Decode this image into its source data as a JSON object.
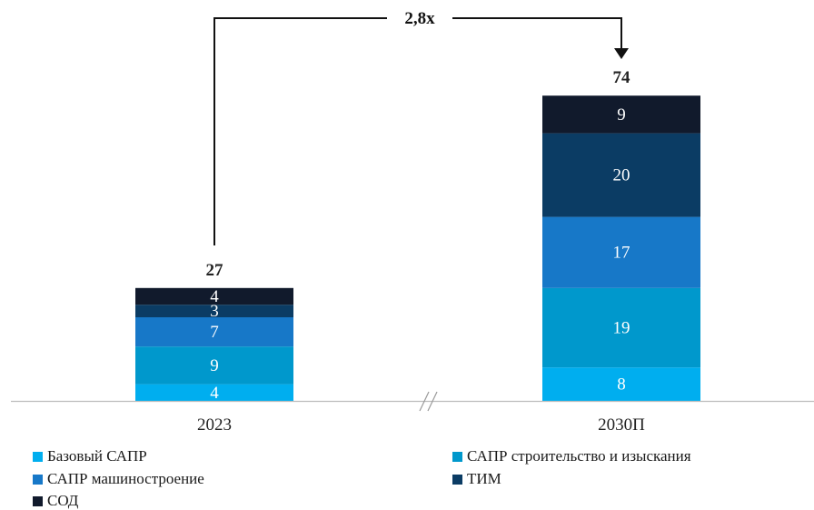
{
  "chart_data": {
    "type": "bar",
    "stacked": true,
    "categories": [
      "2023",
      "2030П"
    ],
    "totals": [
      "27",
      "74"
    ],
    "series": [
      {
        "name": "Базовый САПР",
        "color": "#00AEEF",
        "values": [
          4,
          8
        ]
      },
      {
        "name": "САПР строительство и изыскания",
        "color": "#0098CC",
        "values": [
          9,
          19
        ]
      },
      {
        "name": "САПР машиностроение",
        "color": "#1778C8",
        "values": [
          7,
          17
        ]
      },
      {
        "name": "ТИМ",
        "color": "#0B3C64",
        "values": [
          3,
          20
        ]
      },
      {
        "name": "СОД",
        "color": "#111A2C",
        "values": [
          4,
          9
        ]
      }
    ],
    "growth_label": "2,8x",
    "axis_break": true,
    "ylim": [
      0,
      74
    ]
  }
}
